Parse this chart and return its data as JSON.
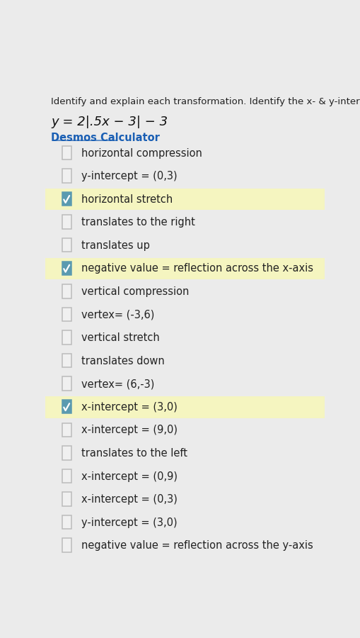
{
  "bg_color": "#ebebeb",
  "highlight_color": "#f5f5c0",
  "header_text": "Identify and explain each transformation. Identify the x- & y-intercepts and the",
  "equation": "y = 2|.5x − 3| − 3",
  "link_text": "Desmos Calculator",
  "link_color": "#1a5fb4",
  "items": [
    {
      "text": "horizontal compression",
      "checked": false,
      "highlighted": false
    },
    {
      "text": "y-intercept = (0,3)",
      "checked": false,
      "highlighted": false
    },
    {
      "text": "horizontal stretch",
      "checked": true,
      "highlighted": true
    },
    {
      "text": "translates to the right",
      "checked": false,
      "highlighted": false
    },
    {
      "text": "translates up",
      "checked": false,
      "highlighted": false
    },
    {
      "text": "negative value = reflection across the x-axis",
      "checked": true,
      "highlighted": true
    },
    {
      "text": "vertical compression",
      "checked": false,
      "highlighted": false
    },
    {
      "text": "vertex= (-3,6)",
      "checked": false,
      "highlighted": false
    },
    {
      "text": "vertical stretch",
      "checked": false,
      "highlighted": false
    },
    {
      "text": "translates down",
      "checked": false,
      "highlighted": false
    },
    {
      "text": "vertex= (6,-3)",
      "checked": false,
      "highlighted": false
    },
    {
      "text": "x-intercept = (3,0)",
      "checked": true,
      "highlighted": true
    },
    {
      "text": "x-intercept = (9,0)",
      "checked": false,
      "highlighted": false
    },
    {
      "text": "translates to the left",
      "checked": false,
      "highlighted": false
    },
    {
      "text": "x-intercept = (0,9)",
      "checked": false,
      "highlighted": false
    },
    {
      "text": "x-intercept = (0,3)",
      "checked": false,
      "highlighted": false
    },
    {
      "text": "y-intercept = (3,0)",
      "checked": false,
      "highlighted": false
    },
    {
      "text": "negative value = reflection across the y-axis",
      "checked": false,
      "highlighted": false
    }
  ],
  "header_fontsize": 9.5,
  "equation_fontsize": 13,
  "link_fontsize": 10.5,
  "text_fontsize": 10.5,
  "checkbox_color_checked": "#5a9ab0",
  "checkbox_color_unchecked": "#bbbbbb",
  "text_color": "#222222"
}
